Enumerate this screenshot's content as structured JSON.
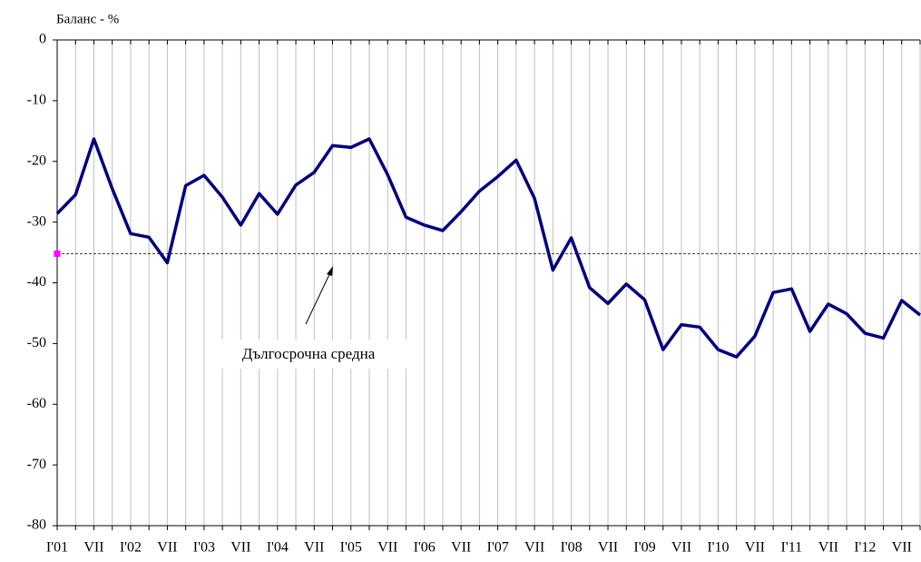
{
  "chart_data": {
    "type": "line",
    "y_axis_label": "Баланс - %",
    "categories": [
      "I'01",
      null,
      "VII",
      null,
      "I'02",
      null,
      "VII",
      null,
      "I'03",
      null,
      "VII",
      null,
      "I'04",
      null,
      "VII",
      null,
      "I'05",
      null,
      "VII",
      null,
      "I'06",
      null,
      "VII",
      null,
      "I'07",
      null,
      "VII",
      null,
      "I'08",
      null,
      "VII",
      null,
      "I'09",
      null,
      "VII",
      null,
      "I'10",
      null,
      "VII",
      null,
      "I'11",
      null,
      "VII",
      null,
      "I'12",
      null,
      "VII",
      null
    ],
    "series": [
      {
        "color": "#000080",
        "values": [
          -28.6,
          -25.5,
          -16.3,
          -24.5,
          -31.9,
          -32.5,
          -36.7,
          -24.0,
          -22.3,
          -25.9,
          -30.5,
          -25.3,
          -28.7,
          -23.9,
          -21.8,
          -17.4,
          -17.7,
          -16.3,
          -22.2,
          -29.2,
          -30.5,
          -31.4,
          -28.3,
          -24.9,
          -22.5,
          -19.8,
          -26.1,
          -37.9,
          -32.6,
          -40.8,
          -43.4,
          -40.2,
          -42.8,
          -51.0,
          -46.9,
          -47.3,
          -51.0,
          -52.2,
          -48.8,
          -41.6,
          -41.0,
          -48.0,
          -43.5,
          -45.1,
          -48.3,
          -49.1,
          -42.9,
          -45.3
        ]
      }
    ],
    "reference_line": {
      "label": "Дългосрочна средна",
      "value": -35.2,
      "color": "#333333",
      "marker_color": "#ff00ff"
    },
    "ylim": [
      -80,
      0
    ],
    "yticks": [
      0,
      -10,
      -20,
      -30,
      -40,
      -50,
      -60,
      -70,
      -80
    ],
    "grid": true
  }
}
